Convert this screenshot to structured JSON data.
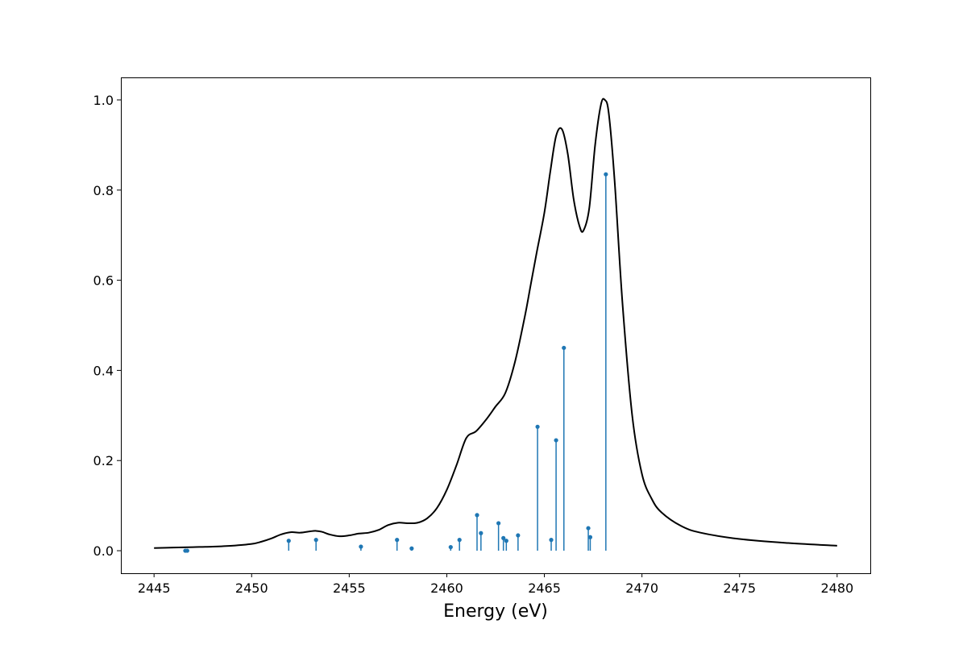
{
  "chart_data": {
    "type": "line",
    "title": "",
    "xlabel": "Energy (eV)",
    "ylabel": "",
    "xlim": [
      2443.3,
      2481.7
    ],
    "ylim": [
      -0.05,
      1.05
    ],
    "grid": false,
    "x_ticks": [
      2445,
      2450,
      2455,
      2460,
      2465,
      2470,
      2475,
      2480
    ],
    "x_tick_labels": [
      "2445",
      "2450",
      "2455",
      "2460",
      "2465",
      "2470",
      "2475",
      "2480"
    ],
    "y_ticks": [
      0.0,
      0.2,
      0.4,
      0.6,
      0.8,
      1.0
    ],
    "y_tick_labels": [
      "0.0",
      "0.2",
      "0.4",
      "0.6",
      "0.8",
      "1.0"
    ],
    "colors": {
      "spectrum": "#000000",
      "sticks": "#1f77b4"
    },
    "series": [
      {
        "kind": "line",
        "x": [
          2445,
          2446,
          2447,
          2448,
          2449,
          2450,
          2450.5,
          2451,
          2451.5,
          2452,
          2452.5,
          2453,
          2453.3,
          2453.6,
          2454,
          2454.5,
          2455,
          2455.5,
          2456,
          2456.5,
          2457,
          2457.5,
          2458,
          2458.5,
          2459,
          2459.5,
          2460,
          2460.5,
          2461,
          2461.5,
          2462,
          2462.5,
          2463,
          2463.5,
          2464,
          2464.3,
          2464.6,
          2465,
          2465.3,
          2465.6,
          2465.9,
          2466.2,
          2466.5,
          2466.8,
          2467,
          2467.3,
          2467.6,
          2467.9,
          2468.1,
          2468.3,
          2468.6,
          2469,
          2469.5,
          2470,
          2470.5,
          2471,
          2472,
          2473,
          2475,
          2477.5,
          2480
        ],
        "y": [
          0.006,
          0.007,
          0.008,
          0.009,
          0.011,
          0.015,
          0.02,
          0.027,
          0.036,
          0.041,
          0.04,
          0.043,
          0.044,
          0.042,
          0.036,
          0.032,
          0.034,
          0.038,
          0.04,
          0.046,
          0.057,
          0.062,
          0.061,
          0.062,
          0.072,
          0.095,
          0.135,
          0.19,
          0.25,
          0.265,
          0.29,
          0.32,
          0.35,
          0.42,
          0.52,
          0.59,
          0.66,
          0.75,
          0.84,
          0.92,
          0.935,
          0.88,
          0.78,
          0.72,
          0.71,
          0.76,
          0.9,
          0.99,
          1.0,
          0.97,
          0.82,
          0.55,
          0.3,
          0.17,
          0.115,
          0.085,
          0.055,
          0.04,
          0.026,
          0.017,
          0.011
        ]
      },
      {
        "kind": "stem",
        "x": [
          2446.6,
          2446.7,
          2451.9,
          2453.3,
          2455.6,
          2457.45,
          2458.2,
          2460.2,
          2460.65,
          2461.55,
          2461.75,
          2462.65,
          2462.9,
          2463.05,
          2463.65,
          2464.65,
          2465.35,
          2465.6,
          2466.0,
          2467.25,
          2467.35,
          2468.15
        ],
        "y": [
          0.0,
          0.0,
          0.022,
          0.024,
          0.009,
          0.024,
          0.005,
          0.008,
          0.024,
          0.079,
          0.039,
          0.061,
          0.028,
          0.022,
          0.034,
          0.275,
          0.024,
          0.245,
          0.45,
          0.05,
          0.03,
          0.835
        ]
      }
    ]
  }
}
